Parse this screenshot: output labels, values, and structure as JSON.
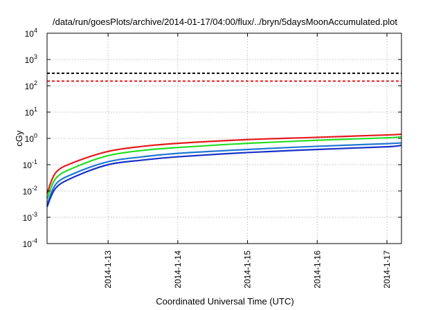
{
  "chart_data": {
    "type": "line",
    "title": "/data/run/goesPlots/archive/2014-01-17/04:00/flux/../bryn/5daysMoonAccumulated.plot",
    "xlabel": "Coordinated Universal Time (UTC)",
    "ylabel": "cGy",
    "y_scale": "log",
    "ylim": [
      0.0001,
      10000
    ],
    "xlim": [
      "2014-01-12T03:00",
      "2014-01-17T05:00"
    ],
    "x_ticks": [
      "2014-1-13",
      "2014-1-14",
      "2014-1-15",
      "2014-1-16",
      "2014-1-17"
    ],
    "y_ticks": [
      {
        "base": "10",
        "exp": "-4"
      },
      {
        "base": "10",
        "exp": "-3"
      },
      {
        "base": "10",
        "exp": "-2"
      },
      {
        "base": "10",
        "exp": "-1"
      },
      {
        "base": "10",
        "exp": "0"
      },
      {
        "base": "10",
        "exp": "1"
      },
      {
        "base": "10",
        "exp": "2"
      },
      {
        "base": "10",
        "exp": "3"
      },
      {
        "base": "10",
        "exp": "4"
      }
    ],
    "grid": true,
    "thresholds": [
      {
        "value": 300,
        "color": "#000000"
      },
      {
        "value": 150,
        "color": "#e41a1c"
      }
    ],
    "series": [
      {
        "color": "#e41a1c",
        "x": [
          "2014-01-12T03:00",
          "2014-01-12T06:00",
          "2014-01-12T12:00",
          "2014-01-13T00:00",
          "2014-01-13T12:00",
          "2014-01-14T00:00",
          "2014-01-15T00:00",
          "2014-01-16T00:00",
          "2014-01-17T00:00",
          "2014-01-17T05:00"
        ],
        "y": [
          0.008,
          0.05,
          0.12,
          0.32,
          0.5,
          0.65,
          0.9,
          1.1,
          1.35,
          1.45
        ]
      },
      {
        "color": "#22dd22",
        "x": [
          "2014-01-12T03:00",
          "2014-01-12T06:00",
          "2014-01-12T12:00",
          "2014-01-13T00:00",
          "2014-01-13T12:00",
          "2014-01-14T00:00",
          "2014-01-15T00:00",
          "2014-01-16T00:00",
          "2014-01-17T00:00",
          "2014-01-17T05:00"
        ],
        "y": [
          0.005,
          0.03,
          0.075,
          0.22,
          0.35,
          0.45,
          0.65,
          0.85,
          1.05,
          1.15
        ]
      },
      {
        "color": "#1f77d4",
        "x": [
          "2014-01-12T03:00",
          "2014-01-12T06:00",
          "2014-01-12T12:00",
          "2014-01-13T00:00",
          "2014-01-13T12:00",
          "2014-01-14T00:00",
          "2014-01-15T00:00",
          "2014-01-16T00:00",
          "2014-01-17T00:00",
          "2014-01-17T05:00"
        ],
        "y": [
          0.003,
          0.018,
          0.045,
          0.13,
          0.2,
          0.27,
          0.38,
          0.5,
          0.63,
          0.68
        ]
      },
      {
        "color": "#1530c8",
        "x": [
          "2014-01-12T03:00",
          "2014-01-12T06:00",
          "2014-01-12T12:00",
          "2014-01-13T00:00",
          "2014-01-13T12:00",
          "2014-01-14T00:00",
          "2014-01-15T00:00",
          "2014-01-16T00:00",
          "2014-01-17T00:00",
          "2014-01-17T05:00"
        ],
        "y": [
          0.0025,
          0.013,
          0.033,
          0.1,
          0.15,
          0.2,
          0.29,
          0.38,
          0.48,
          0.55
        ]
      }
    ]
  }
}
